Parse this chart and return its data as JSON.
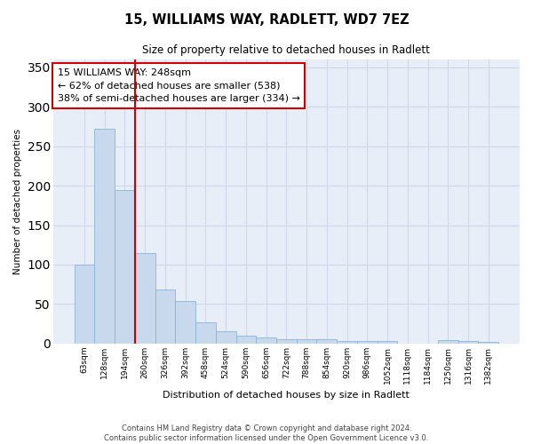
{
  "title": "15, WILLIAMS WAY, RADLETT, WD7 7EZ",
  "subtitle": "Size of property relative to detached houses in Radlett",
  "xlabel": "Distribution of detached houses by size in Radlett",
  "ylabel": "Number of detached properties",
  "footer1": "Contains HM Land Registry data © Crown copyright and database right 2024.",
  "footer2": "Contains public sector information licensed under the Open Government Licence v3.0.",
  "bar_color": "#c8d9ed",
  "bar_edge_color": "#8ab4d8",
  "grid_color": "#d0d8e8",
  "background_color": "#e8eef8",
  "categories": [
    "63sqm",
    "128sqm",
    "194sqm",
    "260sqm",
    "326sqm",
    "392sqm",
    "458sqm",
    "524sqm",
    "590sqm",
    "656sqm",
    "722sqm",
    "788sqm",
    "854sqm",
    "920sqm",
    "986sqm",
    "1052sqm",
    "1118sqm",
    "1184sqm",
    "1250sqm",
    "1316sqm",
    "1382sqm"
  ],
  "values": [
    100,
    272,
    195,
    115,
    68,
    54,
    27,
    16,
    10,
    8,
    5,
    5,
    5,
    3,
    3,
    3,
    0,
    0,
    4,
    3,
    2
  ],
  "ylim": [
    0,
    360
  ],
  "yticks": [
    0,
    50,
    100,
    150,
    200,
    250,
    300,
    350
  ],
  "annotation_line1": "15 WILLIAMS WAY: 248sqm",
  "annotation_line2": "← 62% of detached houses are smaller (538)",
  "annotation_line3": "38% of semi-detached houses are larger (334) →",
  "annotation_box_color": "#ffffff",
  "annotation_box_edge": "#cc0000",
  "red_line_color": "#cc0000",
  "red_line_index": 2.5
}
